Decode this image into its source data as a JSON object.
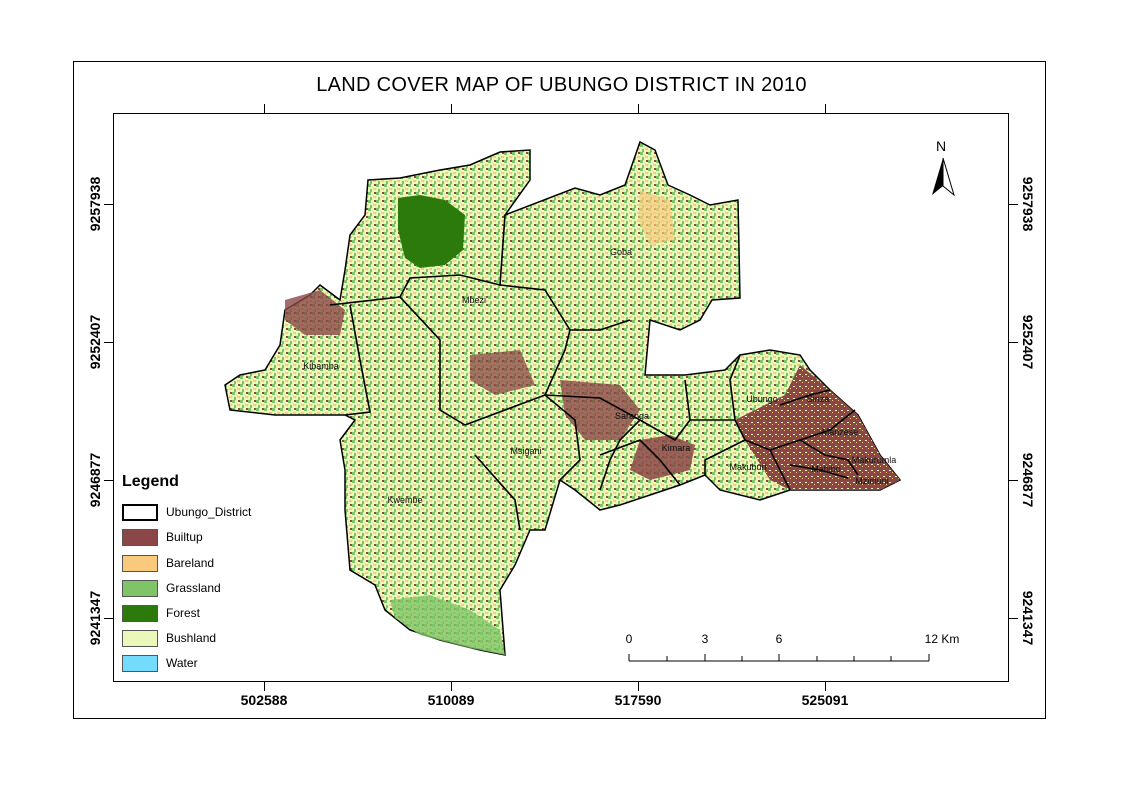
{
  "title": "LAND COVER MAP OF UBUNGO DISTRICT IN 2010",
  "north_arrow": {
    "label": "N"
  },
  "axes": {
    "x_ticks": [
      "502588",
      "510089",
      "517590",
      "525091"
    ],
    "y_ticks": [
      "9257938",
      "9252407",
      "9246877",
      "9241347"
    ]
  },
  "legend": {
    "title": "Legend",
    "items": [
      {
        "label": "Ubungo_District",
        "color": "#ffffff"
      },
      {
        "label": "Builtup",
        "color": "#8b4747"
      },
      {
        "label": "Bareland",
        "color": "#f9c97e"
      },
      {
        "label": "Grassland",
        "color": "#7fc466"
      },
      {
        "label": "Forest",
        "color": "#2d7a0c"
      },
      {
        "label": "Bushland",
        "color": "#eaf8b9"
      },
      {
        "label": "Water",
        "color": "#73dcfc"
      }
    ]
  },
  "wards": [
    "Goba",
    "Mbezi",
    "Kibamba",
    "Saranga",
    "Msigani",
    "Kwembe",
    "Kimara",
    "Makuburi",
    "Ubungo",
    "Sinza",
    "Manzese",
    "Mabibo",
    "Makurumla",
    "Mzimuni"
  ],
  "scale_bar": {
    "labels": [
      "0",
      "3",
      "6",
      "12 Km"
    ]
  }
}
